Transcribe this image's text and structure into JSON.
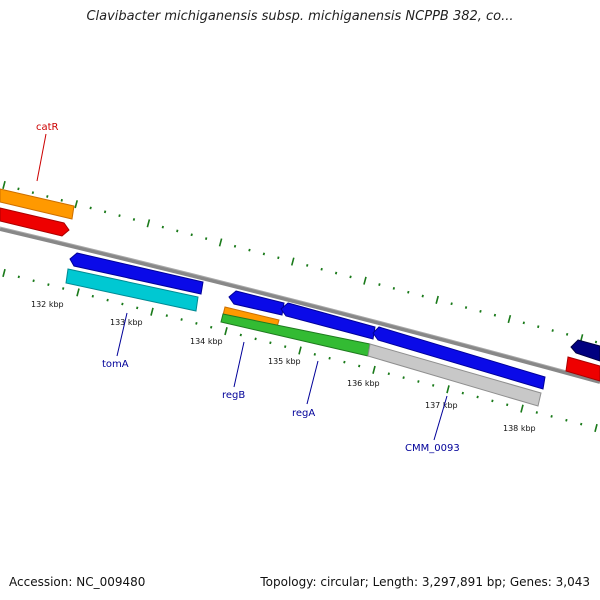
{
  "title": "Clavibacter michiganensis subsp. michiganensis NCPPB 382, co...",
  "accession": "Accession: NC_009480",
  "topology": "Topology: circular; Length: 3,297,891 bp; Genes: 3,043",
  "ticks": [
    {
      "label": "132 kbp"
    },
    {
      "label": "133 kbp"
    },
    {
      "label": "134 kbp"
    },
    {
      "label": "135 kbp"
    },
    {
      "label": "136 kbp"
    },
    {
      "label": "137 kbp"
    },
    {
      "label": "138 kbp"
    }
  ],
  "gene_labels": [
    {
      "text": "catR",
      "color": "#cc0000"
    },
    {
      "text": "tomA",
      "color": "#000099"
    },
    {
      "text": "regB",
      "color": "#000099"
    },
    {
      "text": "regA",
      "color": "#000099"
    },
    {
      "text": "CMM_0093",
      "color": "#000099"
    }
  ],
  "colors": {
    "tick_green": "#1a7a1a",
    "backbone": "#808080",
    "blue": "#0a0ae8",
    "cyan": "#00c8d2",
    "orange": "#ff9900",
    "red": "#ee0000",
    "green": "#33bb33",
    "gray": "#c8c8c8",
    "navy": "#000080"
  }
}
